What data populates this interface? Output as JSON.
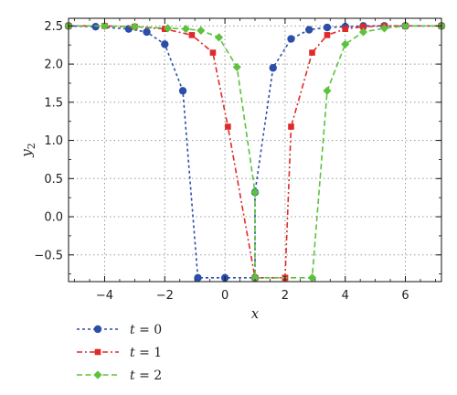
{
  "chart_data": {
    "type": "line",
    "title": "",
    "xlabel": "x",
    "ylabel": "y2",
    "ylabel_base": "y",
    "ylabel_sub": "2",
    "xlim": [
      -5.2,
      7.2
    ],
    "ylim": [
      -0.85,
      2.6
    ],
    "xticks": [
      -4,
      -2,
      0,
      2,
      4,
      6
    ],
    "xtick_labels": [
      "−4",
      "−2",
      "0",
      "2",
      "4",
      "6"
    ],
    "yticks": [
      -0.5,
      0.0,
      0.5,
      1.0,
      1.5,
      2.0,
      2.5
    ],
    "ytick_labels": [
      "−0.5",
      "0.0",
      "0.5",
      "1.0",
      "1.5",
      "2.0",
      "2.5"
    ],
    "grid": true,
    "grid_style": "dotted",
    "legend_position": "below-left",
    "series": [
      {
        "name": "t = 0",
        "legend_var": "t",
        "legend_value": "0",
        "color": "#2b4fa8",
        "marker": "circle",
        "dash": "dotted",
        "x": [
          -5.2,
          -4.3,
          -3.2,
          -2.6,
          -2.0,
          -1.4,
          -0.9,
          0.0,
          1.0,
          1.0,
          1.6,
          2.2,
          2.8,
          3.4,
          4.0,
          4.6,
          5.3,
          6.0,
          7.2
        ],
        "y": [
          2.5,
          2.49,
          2.46,
          2.42,
          2.26,
          1.65,
          -0.8,
          -0.8,
          -0.8,
          0.32,
          1.95,
          2.33,
          2.45,
          2.48,
          2.49,
          2.5,
          2.5,
          2.5,
          2.5
        ]
      },
      {
        "name": "t = 1",
        "legend_var": "t",
        "legend_value": "1",
        "color": "#e02a2a",
        "marker": "square",
        "dash": "dashdot",
        "x": [
          -5.2,
          -4.0,
          -3.0,
          -2.0,
          -1.1,
          -0.4,
          0.1,
          1.0,
          2.0,
          2.0,
          2.2,
          2.9,
          3.4,
          4.0,
          4.6,
          5.3,
          6.0,
          7.2
        ],
        "y": [
          2.5,
          2.5,
          2.49,
          2.46,
          2.38,
          2.15,
          1.18,
          -0.8,
          -0.8,
          -0.8,
          1.18,
          2.15,
          2.38,
          2.46,
          2.49,
          2.5,
          2.5,
          2.5
        ]
      },
      {
        "name": "t = 2",
        "legend_var": "t",
        "legend_value": "2",
        "color": "#5cc23c",
        "marker": "diamond",
        "dash": "dashed",
        "x": [
          -5.2,
          -4.0,
          -3.0,
          -1.9,
          -1.3,
          -0.8,
          -0.2,
          0.4,
          1.0,
          1.0,
          2.9,
          2.9,
          3.4,
          4.0,
          4.6,
          5.3,
          6.0,
          7.2
        ],
        "y": [
          2.5,
          2.5,
          2.49,
          2.47,
          2.46,
          2.44,
          2.35,
          1.96,
          0.32,
          -0.8,
          -0.8,
          -0.8,
          1.65,
          2.26,
          2.42,
          2.47,
          2.5,
          2.5
        ]
      }
    ]
  }
}
